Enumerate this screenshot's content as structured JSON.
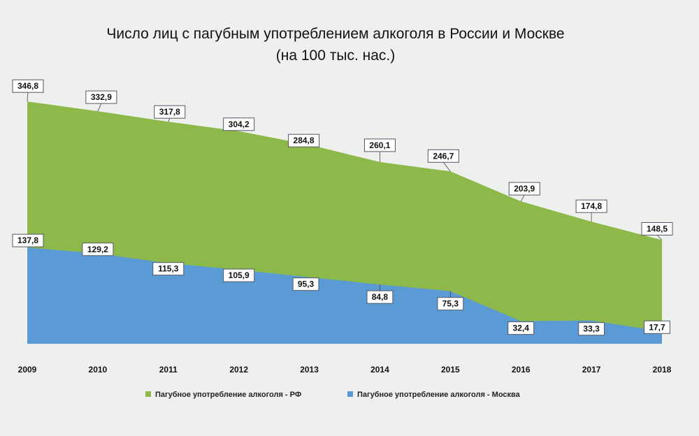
{
  "chart_data": {
    "type": "area",
    "title": [
      "Число лиц с пагубным употреблением алкоголя в России и Москве",
      "(на 100 тыс. нас.)"
    ],
    "categories": [
      "2009",
      "2010",
      "2011",
      "2012",
      "2013",
      "2014",
      "2015",
      "2016",
      "2017",
      "2018"
    ],
    "series": [
      {
        "name": "Пагубное употребление алкоголя - РФ",
        "color": "#8db84a",
        "values": [
          346.8,
          332.9,
          317.8,
          304.2,
          284.8,
          260.1,
          246.7,
          203.9,
          174.8,
          148.5
        ],
        "labels": [
          "346,8",
          "332,9",
          "317,8",
          "304,2",
          "284,8",
          "260,1",
          "246,7",
          "203,9",
          "174,8",
          "148,5"
        ]
      },
      {
        "name": "Пагубное употребление алкоголя - Москва",
        "color": "#5b9bd5",
        "values": [
          137.8,
          129.2,
          115.3,
          105.9,
          95.3,
          84.8,
          75.3,
          32.4,
          33.3,
          17.7
        ],
        "labels": [
          "137,8",
          "129,2",
          "115,3",
          "105,9",
          "95,3",
          "84,8",
          "75,3",
          "32,4",
          "33,3",
          "17,7"
        ]
      }
    ],
    "ylim": [
      0,
      400
    ],
    "grid": false,
    "legend_position": "bottom",
    "stacked": false
  }
}
